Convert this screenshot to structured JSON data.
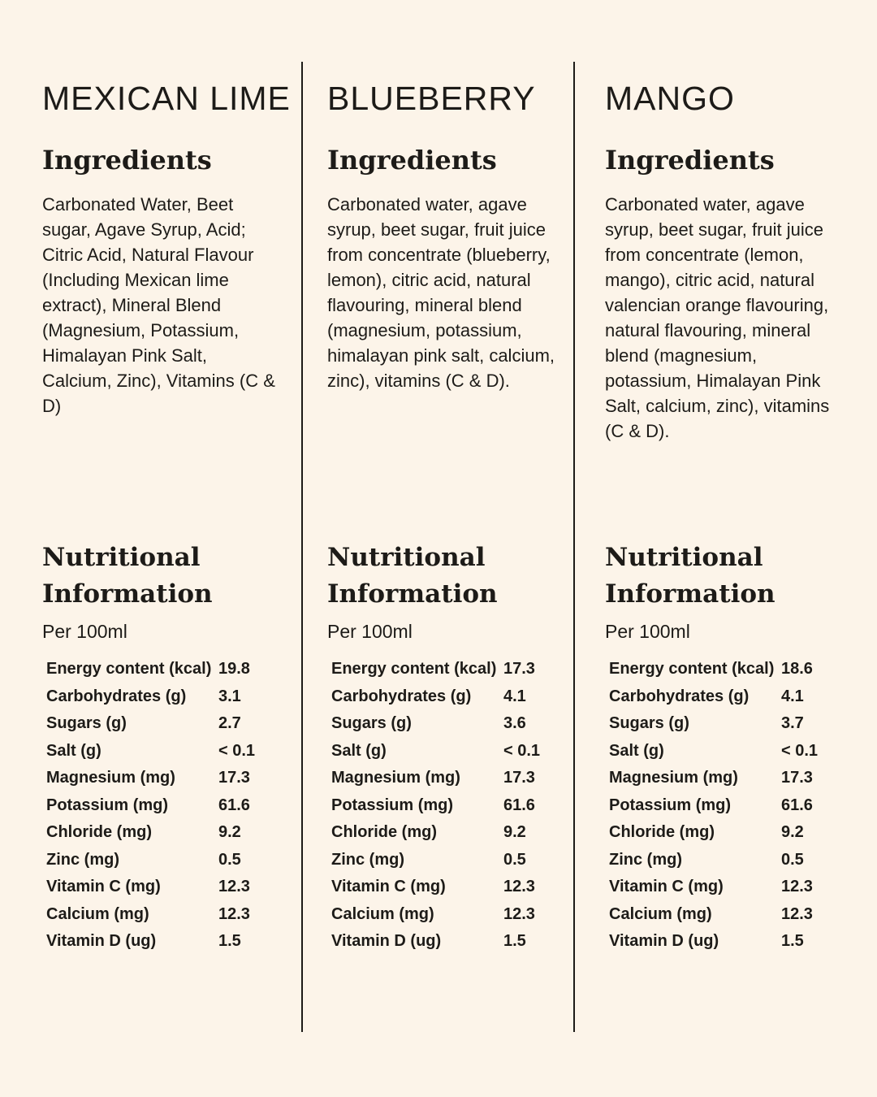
{
  "page": {
    "background_color": "#fcf4e9",
    "text_color": "#1d1b18",
    "divider_color": "#1d1b18"
  },
  "columns": [
    {
      "title": "MEXICAN LIME",
      "ingredients_heading": "Ingredients",
      "ingredients_text": "Carbonated Water, Beet sugar, Agave Syrup, Acid; Citric Acid, Natural Flavour (Including Mexican lime extract), Mineral Blend (Magnesium, Potassium, Himalayan Pink Salt, Calcium, Zinc), Vitamins (C & D)",
      "nutrition_heading": "Nutritional Information",
      "per_label": "Per 100ml",
      "rows": [
        {
          "label": "Energy content (kcal)",
          "value": "19.8"
        },
        {
          "label": "Carbohydrates (g)",
          "value": "3.1"
        },
        {
          "label": "Sugars (g)",
          "value": "2.7"
        },
        {
          "label": "Salt (g)",
          "value": "< 0.1"
        },
        {
          "label": "Magnesium (mg)",
          "value": "17.3"
        },
        {
          "label": "Potassium (mg)",
          "value": "61.6"
        },
        {
          "label": "Chloride (mg)",
          "value": "9.2"
        },
        {
          "label": "Zinc (mg)",
          "value": "0.5"
        },
        {
          "label": "Vitamin C (mg)",
          "value": "12.3"
        },
        {
          "label": "Calcium (mg)",
          "value": "12.3"
        },
        {
          "label": "Vitamin D (ug)",
          "value": "1.5"
        }
      ]
    },
    {
      "title": "BLUEBERRY",
      "ingredients_heading": "Ingredients",
      "ingredients_text": "Carbonated water, agave syrup, beet sugar, fruit juice from concentrate (blueberry, lemon), citric acid, natural flavouring, mineral blend (magnesium, potassium, himalayan pink salt, calcium, zinc), vitamins (C & D).",
      "nutrition_heading": "Nutritional Information",
      "per_label": "Per 100ml",
      "rows": [
        {
          "label": "Energy content (kcal)",
          "value": "17.3"
        },
        {
          "label": "Carbohydrates (g)",
          "value": "4.1"
        },
        {
          "label": "Sugars (g)",
          "value": "3.6"
        },
        {
          "label": "Salt (g)",
          "value": "< 0.1"
        },
        {
          "label": "Magnesium (mg)",
          "value": "17.3"
        },
        {
          "label": "Potassium (mg)",
          "value": "61.6"
        },
        {
          "label": "Chloride (mg)",
          "value": "9.2"
        },
        {
          "label": "Zinc (mg)",
          "value": "0.5"
        },
        {
          "label": "Vitamin C (mg)",
          "value": "12.3"
        },
        {
          "label": "Calcium (mg)",
          "value": "12.3"
        },
        {
          "label": "Vitamin D (ug)",
          "value": "1.5"
        }
      ]
    },
    {
      "title": "MANGO",
      "ingredients_heading": "Ingredients",
      "ingredients_text": "Carbonated water, agave syrup, beet sugar, fruit juice from concentrate (lemon, mango), citric acid, natural valencian orange flavouring, natural flavouring, mineral blend (magnesium, potassium, Himalayan Pink Salt, calcium, zinc), vitamins (C & D).",
      "nutrition_heading": "Nutritional Information",
      "per_label": "Per 100ml",
      "rows": [
        {
          "label": "Energy content (kcal)",
          "value": "18.6"
        },
        {
          "label": "Carbohydrates (g)",
          "value": "4.1"
        },
        {
          "label": "Sugars (g)",
          "value": "3.7"
        },
        {
          "label": "Salt (g)",
          "value": "< 0.1"
        },
        {
          "label": "Magnesium (mg)",
          "value": "17.3"
        },
        {
          "label": "Potassium (mg)",
          "value": "61.6"
        },
        {
          "label": "Chloride (mg)",
          "value": "9.2"
        },
        {
          "label": "Zinc (mg)",
          "value": "0.5"
        },
        {
          "label": "Vitamin C (mg)",
          "value": "12.3"
        },
        {
          "label": "Calcium (mg)",
          "value": "12.3"
        },
        {
          "label": "Vitamin D (ug)",
          "value": "1.5"
        }
      ]
    }
  ]
}
